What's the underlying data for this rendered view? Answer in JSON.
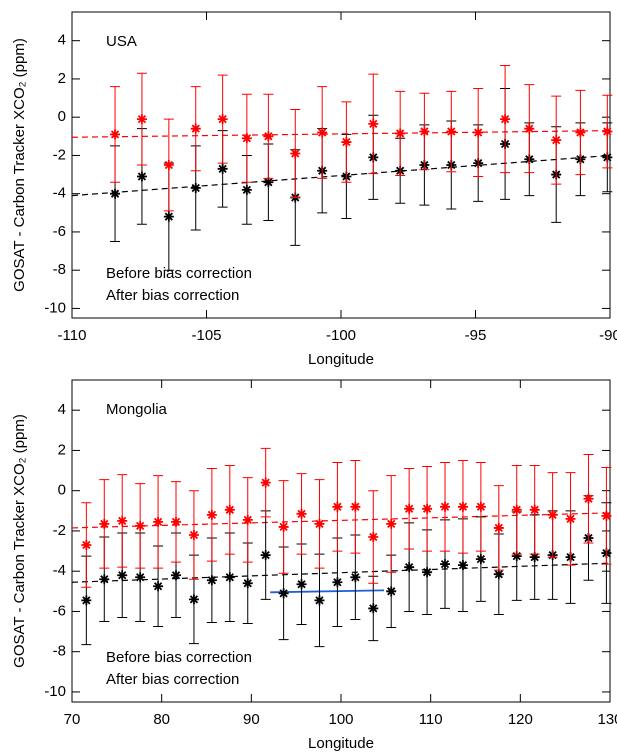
{
  "chart_data": [
    {
      "type": "scatter",
      "label": "USA",
      "x_label": "Longitude",
      "y_label": "GOSAT - Carbon Tracker XCO₂ (ppm)",
      "xlim": [
        -110,
        -90
      ],
      "xticks": [
        -110,
        -105,
        -100,
        -95,
        -90
      ],
      "ylim": [
        -10.5,
        5.5
      ],
      "yticks": [
        -10,
        -8,
        -6,
        -4,
        -2,
        0,
        2,
        4
      ],
      "x": [
        -108.4,
        -107.4,
        -106.4,
        -105.4,
        -104.4,
        -103.5,
        -102.7,
        -101.7,
        -100.7,
        -99.8,
        -98.8,
        -97.8,
        -96.9,
        -95.9,
        -94.9,
        -93.9,
        -93.0,
        -92.0,
        -91.1,
        -90.1
      ],
      "series": [
        {
          "name": "Before bias correction",
          "color": "#000000",
          "values": [
            -4.0,
            -3.1,
            -5.2,
            -3.7,
            -2.7,
            -3.8,
            -3.4,
            -4.2,
            -2.8,
            -3.1,
            -2.1,
            -2.8,
            -2.5,
            -2.5,
            -2.4,
            -1.4,
            -2.2,
            -3.0,
            -2.2,
            -2.1
          ],
          "errors": [
            2.5,
            2.5,
            2.8,
            2.2,
            2.0,
            1.8,
            2.0,
            2.5,
            2.2,
            2.2,
            2.2,
            1.7,
            2.1,
            2.3,
            2.0,
            2.9,
            1.9,
            2.5,
            1.9,
            1.8
          ]
        },
        {
          "name": "After bias correction",
          "color": "#ff0000",
          "values": [
            -0.9,
            -0.1,
            -2.5,
            -0.6,
            -0.1,
            -1.1,
            -1.0,
            -1.9,
            -0.8,
            -1.3,
            -0.35,
            -0.85,
            -0.75,
            -0.75,
            -0.8,
            -0.1,
            -0.6,
            -1.2,
            -0.8,
            -0.75
          ],
          "errors": [
            2.5,
            2.4,
            2.4,
            2.2,
            2.3,
            2.3,
            2.2,
            2.3,
            2.4,
            2.1,
            2.6,
            2.2,
            2.0,
            2.1,
            2.3,
            2.8,
            2.3,
            2.3,
            2.2,
            1.9
          ]
        }
      ],
      "lines": [
        {
          "color": "#000000",
          "dashed": true,
          "x": [
            -110,
            -90
          ],
          "values": [
            -4.1,
            -2.0
          ]
        },
        {
          "color": "#ff0000",
          "dashed": true,
          "x": [
            -110,
            -90
          ],
          "values": [
            -1.05,
            -0.7
          ]
        }
      ]
    },
    {
      "type": "scatter",
      "label": "Mongolia",
      "x_label": "Longitude",
      "y_label": "GOSAT - Carbon Tracker XCO₂ (ppm)",
      "xlim": [
        70,
        130
      ],
      "xticks": [
        70,
        80,
        90,
        100,
        110,
        120,
        130
      ],
      "ylim": [
        -10.5,
        5.5
      ],
      "yticks": [
        -10,
        -8,
        -6,
        -4,
        -2,
        0,
        2,
        4
      ],
      "x": [
        71.6,
        73.6,
        75.6,
        77.6,
        79.6,
        81.6,
        83.6,
        85.6,
        87.6,
        89.6,
        91.6,
        93.6,
        95.6,
        97.6,
        99.6,
        101.6,
        103.6,
        105.6,
        107.6,
        109.6,
        111.6,
        113.6,
        115.6,
        117.6,
        119.6,
        121.6,
        123.6,
        125.6,
        127.6,
        129.6
      ],
      "series": [
        {
          "name": "Before bias correction",
          "color": "#000000",
          "values": [
            -5.45,
            -4.4,
            -4.2,
            -4.3,
            -4.75,
            -4.2,
            -5.4,
            -4.45,
            -4.3,
            -4.6,
            -3.2,
            -5.1,
            -4.65,
            -5.45,
            -4.55,
            -4.3,
            -5.85,
            -5.0,
            -3.8,
            -4.05,
            -3.65,
            -3.7,
            -3.4,
            -4.15,
            -3.25,
            -3.3,
            -3.2,
            -3.3,
            -2.35,
            -3.1
          ],
          "errors": [
            2.2,
            2.1,
            2.1,
            2.2,
            2.0,
            2.1,
            2.2,
            2.1,
            2.2,
            2.0,
            2.2,
            2.3,
            2.0,
            2.3,
            2.2,
            2.1,
            1.6,
            1.8,
            2.2,
            2.1,
            2.2,
            2.3,
            2.1,
            2.0,
            2.2,
            2.1,
            2.2,
            2.3,
            2.1,
            2.5
          ]
        },
        {
          "name": "After bias correction",
          "color": "#ff0000",
          "values": [
            -2.7,
            -1.65,
            -1.5,
            -1.75,
            -1.55,
            -1.55,
            -2.2,
            -1.2,
            -0.95,
            -1.45,
            0.4,
            -1.8,
            -1.15,
            -1.65,
            -0.8,
            -0.8,
            -2.3,
            -1.65,
            -0.9,
            -0.9,
            -0.8,
            -0.8,
            -0.8,
            -1.85,
            -0.95,
            -0.95,
            -1.2,
            -1.4,
            -0.4,
            -1.25
          ],
          "errors": [
            2.1,
            2.2,
            2.3,
            2.1,
            2.3,
            2.0,
            2.2,
            2.3,
            2.2,
            2.1,
            1.7,
            2.3,
            2.0,
            2.2,
            2.2,
            2.3,
            2.3,
            2.4,
            2.0,
            2.1,
            2.2,
            2.3,
            2.2,
            2.1,
            2.2,
            2.2,
            2.1,
            2.3,
            2.2,
            2.4
          ]
        }
      ],
      "lines": [
        {
          "color": "#000000",
          "dashed": true,
          "x": [
            70,
            130
          ],
          "values": [
            -4.55,
            -3.6
          ]
        },
        {
          "color": "#ff0000",
          "dashed": true,
          "x": [
            70,
            130
          ],
          "values": [
            -1.85,
            -1.1
          ]
        },
        {
          "color": "#1f5fd6",
          "dashed": false,
          "x": [
            92.1,
            104.8
          ],
          "values": [
            -5.05,
            -4.95
          ]
        }
      ]
    }
  ]
}
